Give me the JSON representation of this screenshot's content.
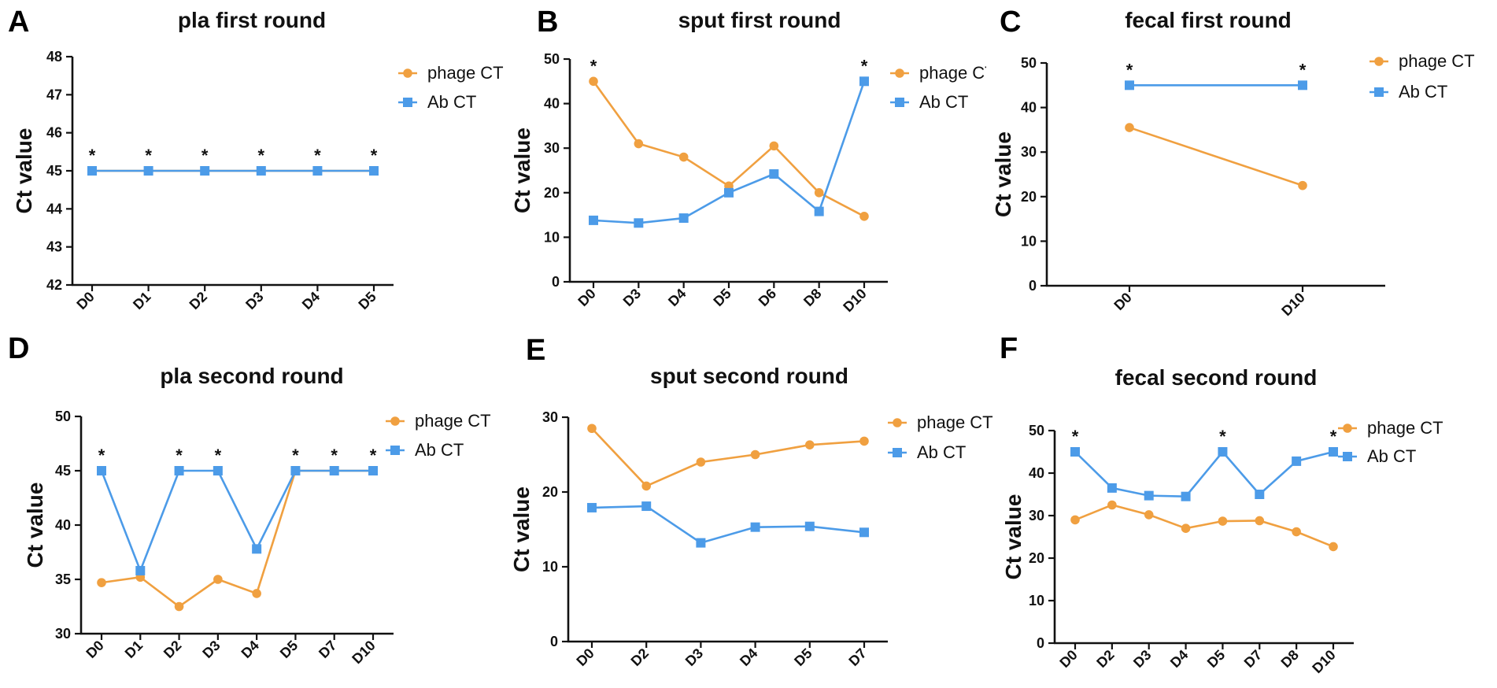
{
  "colors": {
    "phage": "#f0a040",
    "ab": "#4c9be8",
    "axis": "#111111"
  },
  "chart_data": [
    {
      "letter": "A",
      "title": "pla first round",
      "type": "line",
      "ylabel": "Ct value",
      "categories": [
        "D0",
        "D1",
        "D2",
        "D3",
        "D4",
        "D5"
      ],
      "ylim": [
        42,
        48
      ],
      "yticks": [
        "42",
        "43",
        "44",
        "45",
        "46",
        "47",
        "48"
      ],
      "legend_position": "top-right",
      "series": [
        {
          "name": "phage CT",
          "key": "phage",
          "values": [
            45,
            45,
            45,
            45,
            45,
            45
          ]
        },
        {
          "name": "Ab CT",
          "key": "ab",
          "values": [
            45,
            45,
            45,
            45,
            45,
            45
          ]
        }
      ],
      "stars": [
        0,
        1,
        2,
        3,
        4,
        5
      ],
      "star_label": "*"
    },
    {
      "letter": "B",
      "title": "sput first round",
      "type": "line",
      "ylabel": "Ct value",
      "categories": [
        "D0",
        "D3",
        "D4",
        "D5",
        "D6",
        "D8",
        "D10"
      ],
      "ylim": [
        0,
        50
      ],
      "yticks": [
        "0",
        "10",
        "20",
        "30",
        "40",
        "50"
      ],
      "legend_position": "top-right",
      "series": [
        {
          "name": "phage CT",
          "key": "phage",
          "values": [
            45,
            31,
            28,
            21.5,
            30.5,
            20,
            14.7
          ]
        },
        {
          "name": "Ab CT",
          "key": "ab",
          "values": [
            13.8,
            13.2,
            14.3,
            20,
            24.2,
            15.8,
            45
          ]
        }
      ],
      "stars": [
        0,
        6
      ],
      "star_label": "*"
    },
    {
      "letter": "C",
      "title": "fecal first round",
      "type": "line",
      "ylabel": "Ct value",
      "categories": [
        "D0",
        "D10"
      ],
      "ylim": [
        0,
        50
      ],
      "yticks": [
        "0",
        "10",
        "20",
        "30",
        "40",
        "50"
      ],
      "legend_position": "top-right",
      "series": [
        {
          "name": "phage CT",
          "key": "phage",
          "values": [
            35.5,
            22.5
          ]
        },
        {
          "name": "Ab CT",
          "key": "ab",
          "values": [
            45,
            45
          ]
        }
      ],
      "stars": [
        0,
        1
      ],
      "star_label": "*"
    },
    {
      "letter": "D",
      "title": "pla second round",
      "type": "line",
      "ylabel": "Ct value",
      "categories": [
        "D0",
        "D1",
        "D2",
        "D3",
        "D4",
        "D5",
        "D7",
        "D10"
      ],
      "ylim": [
        30,
        50
      ],
      "yticks": [
        "30",
        "35",
        "40",
        "45",
        "50"
      ],
      "legend_position": "top-right",
      "series": [
        {
          "name": "phage CT",
          "key": "phage",
          "values": [
            34.7,
            35.2,
            32.5,
            35,
            33.7,
            45,
            45,
            45
          ]
        },
        {
          "name": "Ab CT",
          "key": "ab",
          "values": [
            45,
            35.8,
            45,
            45,
            37.8,
            45,
            45,
            45
          ]
        }
      ],
      "stars": [
        0,
        2,
        3,
        5,
        6,
        7
      ],
      "star_label": "*"
    },
    {
      "letter": "E",
      "title": "sput second round",
      "type": "line",
      "ylabel": "Ct value",
      "categories": [
        "D0",
        "D2",
        "D3",
        "D4",
        "D5",
        "D7"
      ],
      "ylim": [
        0,
        30
      ],
      "yticks": [
        "0",
        "10",
        "20",
        "30"
      ],
      "legend_position": "top-right",
      "series": [
        {
          "name": "phage CT",
          "key": "phage",
          "values": [
            28.5,
            20.8,
            24,
            25,
            26.3,
            26.8
          ]
        },
        {
          "name": "Ab CT",
          "key": "ab",
          "values": [
            17.9,
            18.1,
            13.2,
            15.3,
            15.4,
            14.6
          ]
        }
      ],
      "stars": [],
      "star_label": "*"
    },
    {
      "letter": "F",
      "title": "fecal second round",
      "type": "line",
      "ylabel": "Ct value",
      "categories": [
        "D0",
        "D2",
        "D3",
        "D4",
        "D5",
        "D7",
        "D8",
        "D10"
      ],
      "ylim": [
        0,
        50
      ],
      "yticks": [
        "0",
        "10",
        "20",
        "30",
        "40",
        "50"
      ],
      "legend_position": "top-right",
      "series": [
        {
          "name": "phage CT",
          "key": "phage",
          "values": [
            29,
            32.5,
            30.2,
            27,
            28.7,
            28.8,
            26.2,
            22.7
          ]
        },
        {
          "name": "Ab CT",
          "key": "ab",
          "values": [
            45,
            36.5,
            34.7,
            34.5,
            45,
            35,
            42.8,
            45
          ]
        }
      ],
      "stars": [
        0,
        4,
        7
      ],
      "star_label": "*"
    }
  ]
}
